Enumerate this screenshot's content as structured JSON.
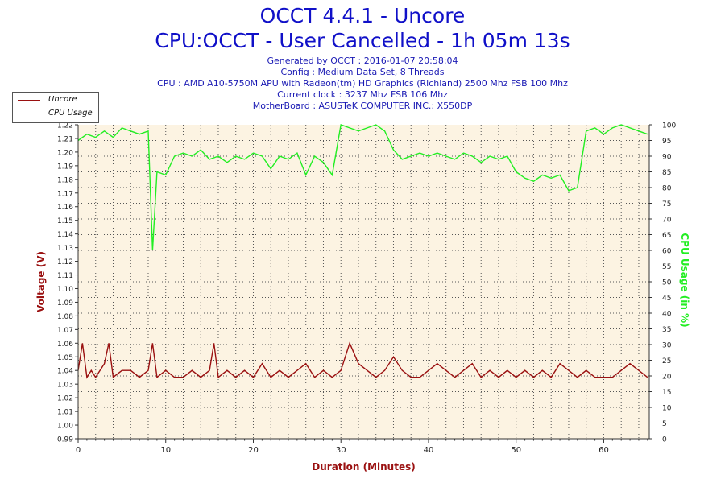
{
  "header": {
    "title": "OCCT 4.4.1 - Uncore",
    "subtitle": "CPU:OCCT - User Cancelled - 1h 05m 13s",
    "info_lines": [
      "Generated by OCCT : 2016-01-07 20:58:04",
      "Config : Medium Data Set, 8 Threads",
      "CPU : AMD A10-5750M APU with Radeon(tm) HD Graphics (Richland) 2500 Mhz FSB 100 Mhz",
      "Current clock : 3237 Mhz FSB 106 Mhz",
      "MotherBoard : ASUSTeK COMPUTER INC.: X550DP"
    ]
  },
  "colors": {
    "uncore": "#9a1010",
    "cpu_usage": "#22ee22",
    "plot_bg": "#fcf3e2",
    "left_axis_label": "#9a1010",
    "right_axis_label": "#22ee22",
    "x_axis_label": "#9a1010"
  },
  "chart_data": {
    "type": "line",
    "title": "OCCT 4.4.1 - Uncore",
    "xlabel": "Duration (Minutes)",
    "ylabel": "Voltage (V)",
    "y2label": "CPU Usage (in %)",
    "xlim": [
      0,
      65.2
    ],
    "ylim": [
      0.99,
      1.22
    ],
    "y2lim": [
      0,
      100
    ],
    "x_ticks": [
      0,
      10,
      20,
      30,
      40,
      50,
      60
    ],
    "y_ticks": [
      "0.99",
      "1.00",
      "1.01",
      "1.02",
      "1.03",
      "1.04",
      "1.05",
      "1.06",
      "1.07",
      "1.08",
      "1.09",
      "1.10",
      "1.11",
      "1.12",
      "1.13",
      "1.14",
      "1.15",
      "1.16",
      "1.17",
      "1.18",
      "1.19",
      "1.20",
      "1.21",
      "1.22"
    ],
    "y2_ticks": [
      0,
      5,
      10,
      15,
      20,
      25,
      30,
      35,
      40,
      45,
      50,
      55,
      60,
      65,
      70,
      75,
      80,
      85,
      90,
      95,
      100
    ],
    "grid": true,
    "legend_position": "top-left",
    "series": [
      {
        "name": "Uncore",
        "axis": "left",
        "x": [
          0,
          0.5,
          1,
          1.5,
          2,
          3,
          3.5,
          4,
          5,
          6,
          7,
          8,
          8.5,
          9,
          10,
          11,
          12,
          13,
          14,
          15,
          15.5,
          16,
          17,
          18,
          19,
          20,
          21,
          22,
          23,
          24,
          25,
          26,
          27,
          28,
          29,
          30,
          31,
          32,
          33,
          34,
          35,
          36,
          37,
          38,
          39,
          40,
          41,
          42,
          43,
          44,
          45,
          46,
          47,
          48,
          49,
          50,
          51,
          52,
          53,
          54,
          55,
          56,
          57,
          58,
          59,
          60,
          61,
          62,
          63,
          64,
          65
        ],
        "values": [
          1.04,
          1.06,
          1.035,
          1.04,
          1.035,
          1.045,
          1.06,
          1.035,
          1.04,
          1.04,
          1.035,
          1.04,
          1.06,
          1.035,
          1.04,
          1.035,
          1.035,
          1.04,
          1.035,
          1.04,
          1.06,
          1.035,
          1.04,
          1.035,
          1.04,
          1.035,
          1.045,
          1.035,
          1.04,
          1.035,
          1.04,
          1.045,
          1.035,
          1.04,
          1.035,
          1.04,
          1.06,
          1.045,
          1.04,
          1.035,
          1.04,
          1.05,
          1.04,
          1.035,
          1.035,
          1.04,
          1.045,
          1.04,
          1.035,
          1.04,
          1.045,
          1.035,
          1.04,
          1.035,
          1.04,
          1.035,
          1.04,
          1.035,
          1.04,
          1.035,
          1.045,
          1.04,
          1.035,
          1.04,
          1.035,
          1.035,
          1.035,
          1.04,
          1.045,
          1.04,
          1.035
        ]
      },
      {
        "name": "CPU Usage",
        "axis": "right",
        "x": [
          0,
          1,
          2,
          3,
          4,
          5,
          6,
          7,
          8,
          8.5,
          9,
          10,
          11,
          12,
          13,
          14,
          15,
          16,
          17,
          18,
          19,
          20,
          21,
          22,
          23,
          24,
          25,
          26,
          27,
          28,
          29,
          30,
          31,
          32,
          33,
          34,
          35,
          36,
          37,
          38,
          39,
          40,
          41,
          42,
          43,
          44,
          45,
          46,
          47,
          48,
          49,
          50,
          51,
          52,
          53,
          54,
          55,
          56,
          57,
          58,
          59,
          60,
          61,
          62,
          63,
          64,
          65
        ],
        "values": [
          95,
          97,
          96,
          98,
          96,
          99,
          98,
          97,
          98,
          60,
          85,
          84,
          90,
          91,
          90,
          92,
          89,
          90,
          88,
          90,
          89,
          91,
          90,
          86,
          90,
          89,
          91,
          84,
          90,
          88,
          84,
          100,
          99,
          98,
          99,
          100,
          98,
          92,
          89,
          90,
          91,
          90,
          91,
          90,
          89,
          91,
          90,
          88,
          90,
          89,
          90,
          85,
          83,
          82,
          84,
          83,
          84,
          79,
          80,
          98,
          99,
          97,
          99,
          100,
          99,
          98,
          97
        ]
      }
    ]
  }
}
